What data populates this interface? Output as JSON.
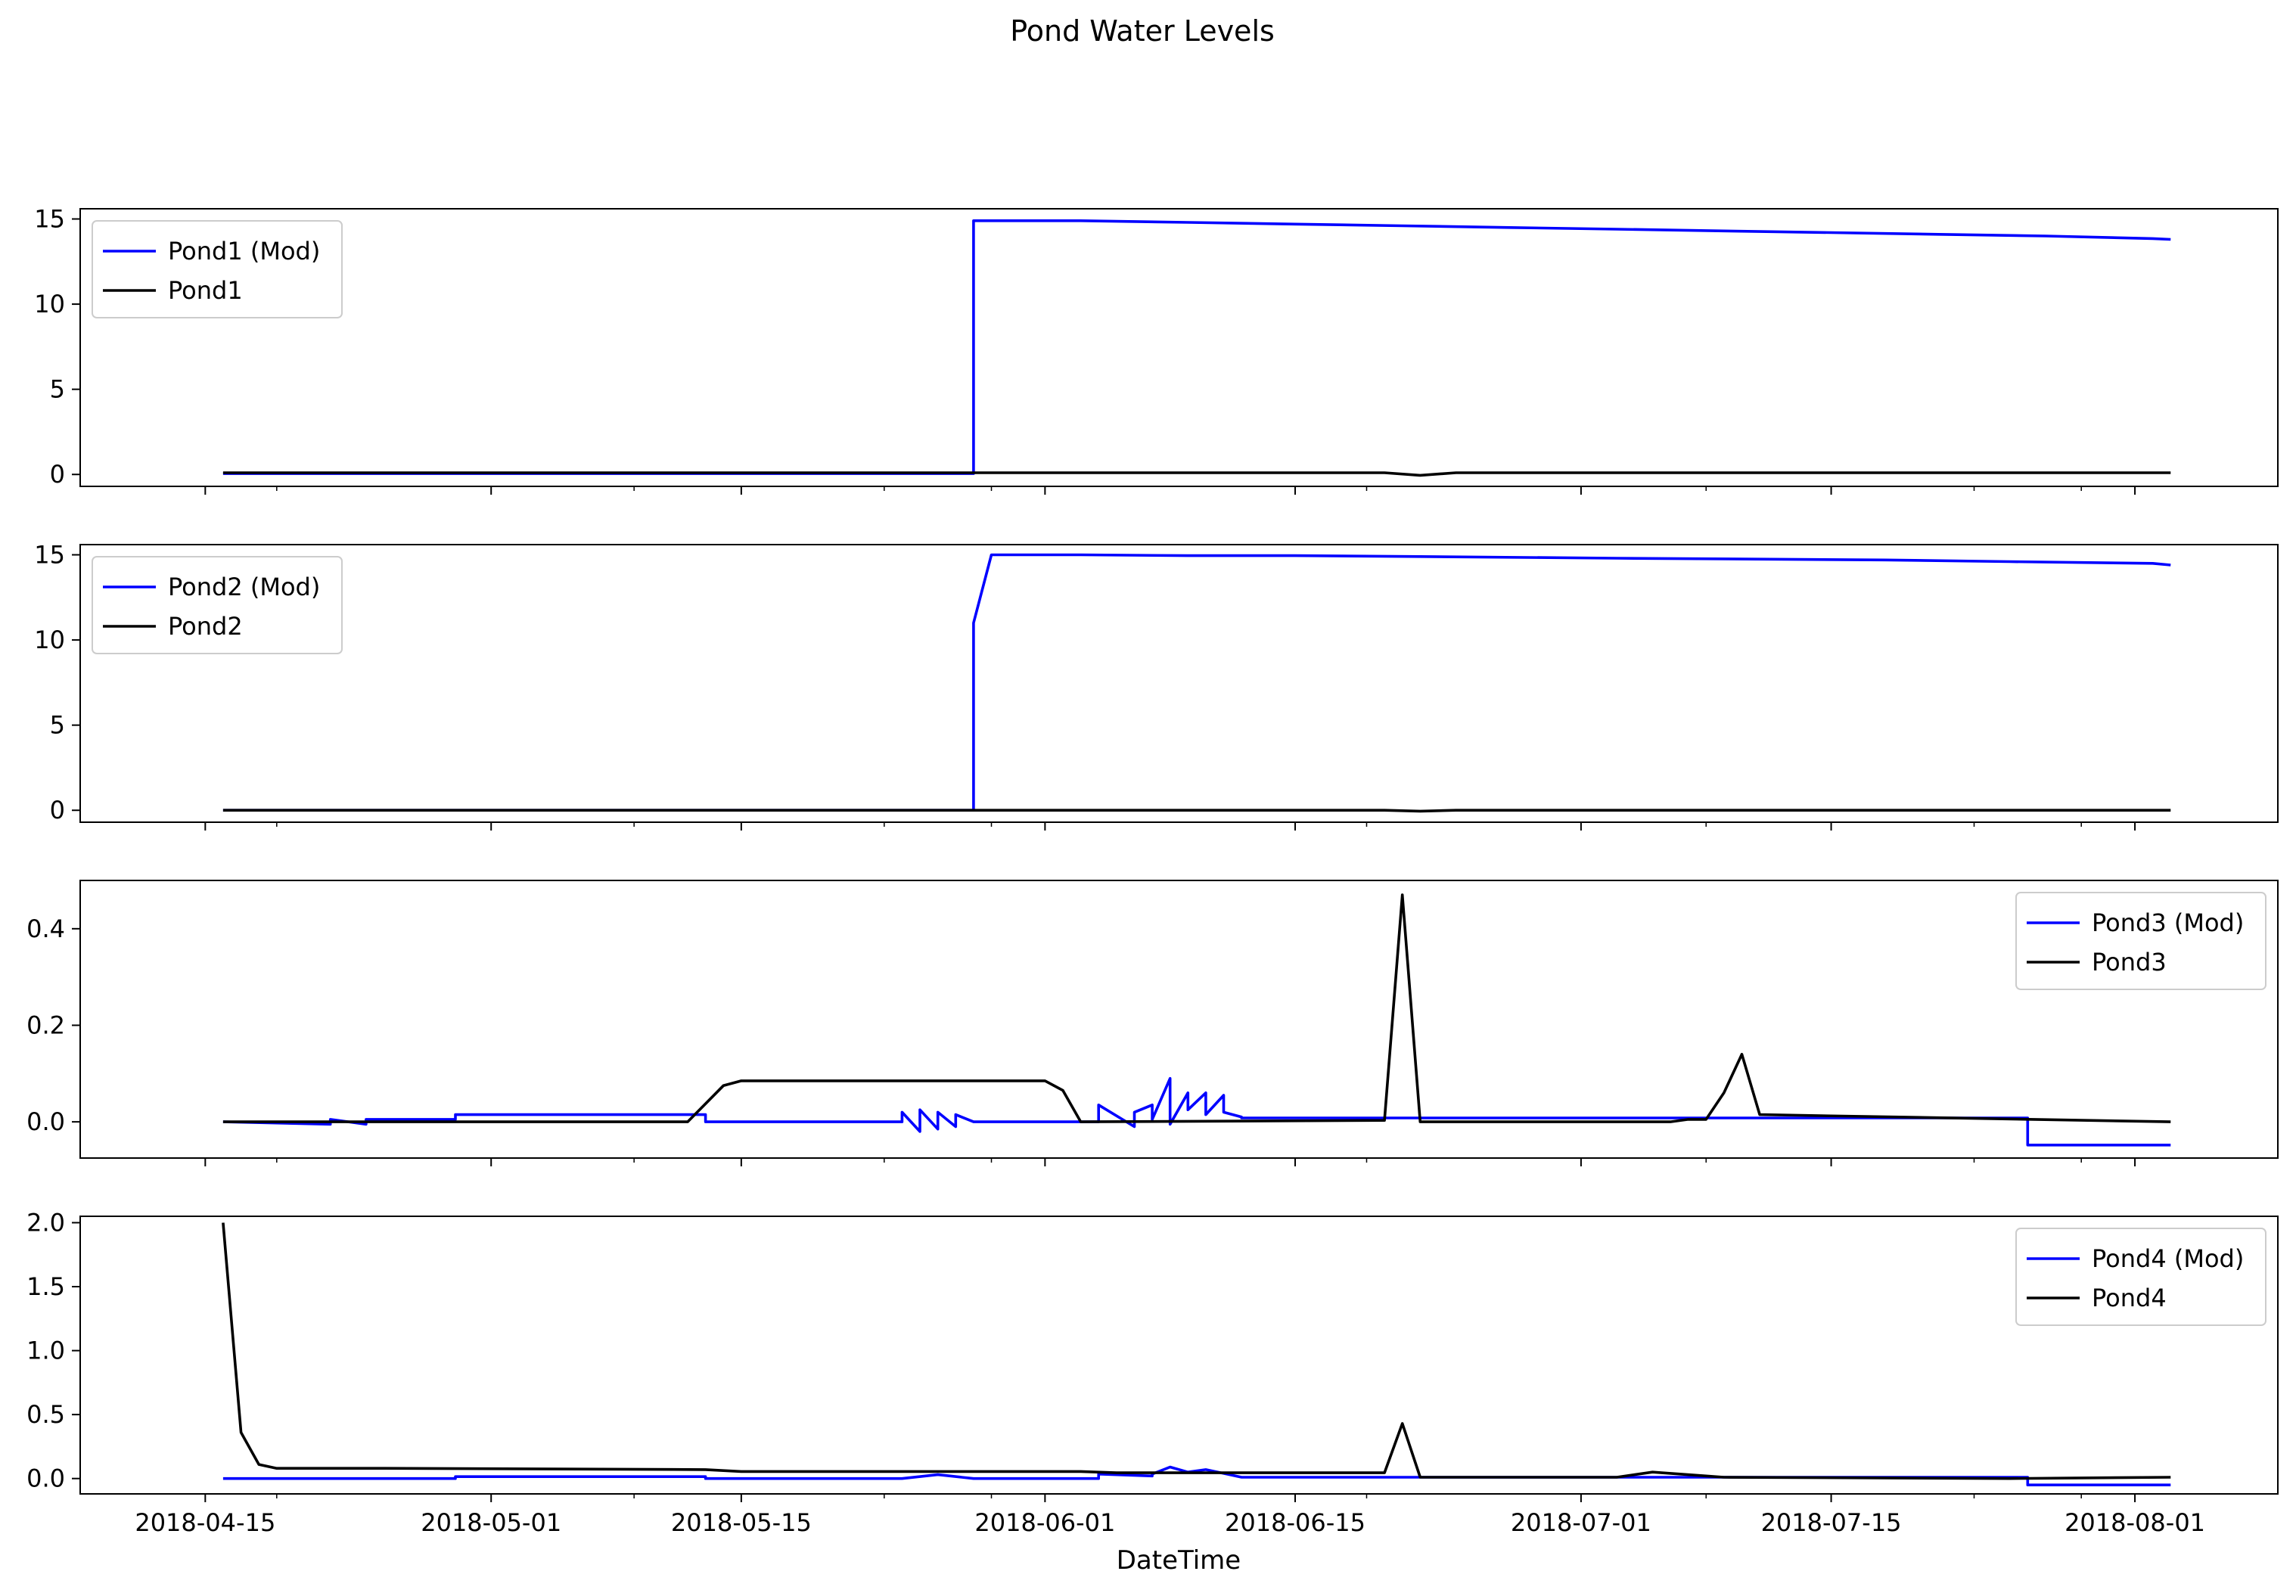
{
  "chart_data": {
    "type": "line",
    "title": "Pond Water Levels",
    "xlabel": "DateTime",
    "x_range": [
      "2018-04-16",
      "2018-08-03"
    ],
    "x_tick_labels": [
      "2018-04-15",
      "2018-05-01",
      "2018-05-15",
      "2018-06-01",
      "2018-06-15",
      "2018-07-01",
      "2018-07-15",
      "2018-08-01"
    ],
    "x_tick_dates": [
      "2018-04-15",
      "2018-05-01",
      "2018-05-15",
      "2018-06-01",
      "2018-06-15",
      "2018-07-01",
      "2018-07-15",
      "2018-08-01"
    ],
    "x_minor_tick_dates": [
      "2018-04-19",
      "2018-05-09",
      "2018-05-23",
      "2018-05-29",
      "2018-06-19",
      "2018-07-08",
      "2018-07-23",
      "2018-07-29"
    ],
    "x_date_span": [
      "2018-04-08",
      "2018-08-09"
    ],
    "grid": false,
    "colors": {
      "modeled": "#0000ff",
      "observed": "#000000"
    },
    "subplots": [
      {
        "yticks": [
          "0",
          "5",
          "10",
          "15"
        ],
        "ylim": [
          -0.7,
          15.6
        ],
        "legend_placement": "upper left",
        "series": [
          {
            "name": "Pond1 (Mod)",
            "color": "#0000ff",
            "x": [
              "2018-04-16",
              "2018-05-28",
              "2018-05-28",
              "2018-06-03",
              "2018-06-09",
              "2018-06-15",
              "2018-06-21",
              "2018-06-27",
              "2018-07-03",
              "2018-07-09",
              "2018-07-15",
              "2018-07-21",
              "2018-07-27",
              "2018-08-02",
              "2018-08-03"
            ],
            "y": [
              0.05,
              0.05,
              14.9,
              14.9,
              14.8,
              14.7,
              14.6,
              14.5,
              14.4,
              14.3,
              14.2,
              14.1,
              14.0,
              13.85,
              13.8
            ]
          },
          {
            "name": "Pond1",
            "color": "#000000",
            "x": [
              "2018-04-16",
              "2018-06-20",
              "2018-06-22",
              "2018-06-24",
              "2018-08-03"
            ],
            "y": [
              0.1,
              0.1,
              -0.05,
              0.1,
              0.1
            ]
          }
        ]
      },
      {
        "yticks": [
          "0",
          "5",
          "10",
          "15"
        ],
        "ylim": [
          -0.7,
          15.6
        ],
        "legend_placement": "upper left",
        "series": [
          {
            "name": "Pond2 (Mod)",
            "color": "#0000ff",
            "x": [
              "2018-04-16",
              "2018-05-28",
              "2018-05-28",
              "2018-05-29",
              "2018-06-03",
              "2018-06-09",
              "2018-06-15",
              "2018-06-22",
              "2018-07-03",
              "2018-07-18",
              "2018-07-25",
              "2018-08-02",
              "2018-08-03"
            ],
            "y": [
              0.0,
              0.0,
              11.0,
              15.0,
              15.0,
              14.95,
              14.95,
              14.9,
              14.8,
              14.7,
              14.6,
              14.5,
              14.4
            ]
          },
          {
            "name": "Pond2",
            "color": "#000000",
            "x": [
              "2018-04-16",
              "2018-06-20",
              "2018-06-22",
              "2018-06-24",
              "2018-08-03"
            ],
            "y": [
              0.0,
              0.0,
              -0.05,
              0.0,
              0.0
            ]
          }
        ]
      },
      {
        "yticks": [
          "0.0",
          "0.2",
          "0.4"
        ],
        "ylim": [
          -0.075,
          0.5
        ],
        "legend_placement": "upper right",
        "series": [
          {
            "name": "Pond3 (Mod)",
            "color": "#0000ff",
            "x": [
              "2018-04-16",
              "2018-04-22",
              "2018-04-22",
              "2018-04-24",
              "2018-04-24",
              "2018-04-29",
              "2018-04-29",
              "2018-05-13",
              "2018-05-13",
              "2018-05-24",
              "2018-05-24",
              "2018-05-25",
              "2018-05-25",
              "2018-05-26",
              "2018-05-26",
              "2018-05-27",
              "2018-05-27",
              "2018-05-28",
              "2018-05-28",
              "2018-06-04",
              "2018-06-04",
              "2018-06-06",
              "2018-06-06",
              "2018-06-07",
              "2018-06-07",
              "2018-06-08",
              "2018-06-08",
              "2018-06-09",
              "2018-06-09",
              "2018-06-10",
              "2018-06-10",
              "2018-06-11",
              "2018-06-11",
              "2018-06-12",
              "2018-06-12",
              "2018-07-20",
              "2018-07-20",
              "2018-07-26",
              "2018-07-26",
              "2018-08-03"
            ],
            "y": [
              0.0,
              -0.005,
              0.005,
              -0.005,
              0.005,
              0.005,
              0.015,
              0.015,
              0.0,
              0.0,
              0.02,
              -0.02,
              0.025,
              -0.015,
              0.02,
              -0.01,
              0.015,
              0.0,
              0.0,
              0.0,
              0.035,
              -0.01,
              0.02,
              0.035,
              0.005,
              0.09,
              -0.005,
              0.06,
              0.025,
              0.06,
              0.015,
              0.055,
              0.02,
              0.01,
              0.008,
              0.008,
              0.008,
              0.008,
              -0.048,
              -0.048
            ]
          },
          {
            "name": "Pond3",
            "color": "#000000",
            "x": [
              "2018-04-16",
              "2018-05-12",
              "2018-05-14",
              "2018-05-15",
              "2018-06-01",
              "2018-06-02",
              "2018-06-03",
              "2018-06-20",
              "2018-06-21",
              "2018-06-22",
              "2018-07-06",
              "2018-07-07",
              "2018-07-08",
              "2018-07-09",
              "2018-07-10",
              "2018-07-11",
              "2018-08-03"
            ],
            "y": [
              0.0,
              0.0,
              0.075,
              0.085,
              0.085,
              0.065,
              0.0,
              0.003,
              0.47,
              0.0,
              0.0,
              0.005,
              0.005,
              0.06,
              0.14,
              0.015,
              0.0
            ]
          }
        ]
      },
      {
        "yticks": [
          "0.0",
          "0.5",
          "1.0",
          "1.5",
          "2.0"
        ],
        "ylim": [
          -0.12,
          2.05
        ],
        "legend_placement": "upper right",
        "series": [
          {
            "name": "Pond4 (Mod)",
            "color": "#0000ff",
            "x": [
              "2018-04-16",
              "2018-04-29",
              "2018-04-29",
              "2018-05-13",
              "2018-05-13",
              "2018-05-24",
              "2018-05-26",
              "2018-05-28",
              "2018-06-04",
              "2018-06-04",
              "2018-06-07",
              "2018-06-07",
              "2018-06-08",
              "2018-06-09",
              "2018-06-10",
              "2018-06-11",
              "2018-06-12",
              "2018-07-26",
              "2018-07-26",
              "2018-08-03"
            ],
            "y": [
              0.0,
              0.0,
              0.015,
              0.015,
              0.0,
              0.0,
              0.03,
              0.0,
              0.0,
              0.035,
              0.02,
              0.035,
              0.09,
              0.05,
              0.07,
              0.04,
              0.01,
              0.01,
              -0.05,
              -0.05
            ]
          },
          {
            "name": "Pond4",
            "color": "#000000",
            "x": [
              "2018-04-16",
              "2018-04-17",
              "2018-04-18",
              "2018-04-19",
              "2018-04-25",
              "2018-05-13",
              "2018-05-15",
              "2018-06-03",
              "2018-06-05",
              "2018-06-20",
              "2018-06-21",
              "2018-06-22",
              "2018-06-30",
              "2018-07-03",
              "2018-07-05",
              "2018-07-08",
              "2018-07-09",
              "2018-07-25",
              "2018-08-03"
            ],
            "y": [
              2.0,
              0.36,
              0.11,
              0.08,
              0.08,
              0.07,
              0.055,
              0.055,
              0.045,
              0.045,
              0.43,
              0.01,
              0.01,
              0.01,
              0.05,
              0.02,
              0.01,
              0.0,
              0.01
            ]
          }
        ]
      }
    ]
  }
}
